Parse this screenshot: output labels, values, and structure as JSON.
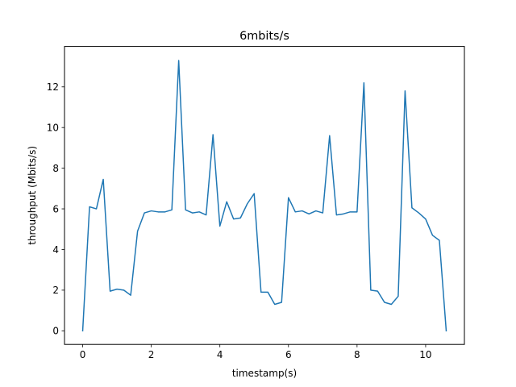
{
  "chart_data": {
    "type": "line",
    "title": "6mbits/s",
    "xlabel": "timestamp(s)",
    "ylabel": "throughput (Mbits/s)",
    "xlim": [
      -0.53,
      11.13
    ],
    "ylim": [
      -0.67,
      13.99
    ],
    "xticks": [
      0,
      2,
      4,
      6,
      8,
      10
    ],
    "yticks": [
      0,
      2,
      4,
      6,
      8,
      10,
      12
    ],
    "grid": false,
    "line_color": "#1f77b4",
    "x": [
      0.0,
      0.2,
      0.4,
      0.6,
      0.8,
      1.0,
      1.2,
      1.4,
      1.6,
      1.8,
      2.0,
      2.2,
      2.4,
      2.6,
      2.8,
      3.0,
      3.2,
      3.4,
      3.6,
      3.8,
      4.0,
      4.2,
      4.4,
      4.6,
      4.8,
      5.0,
      5.2,
      5.4,
      5.6,
      5.8,
      6.0,
      6.2,
      6.4,
      6.6,
      6.8,
      7.0,
      7.2,
      7.4,
      7.6,
      7.8,
      8.0,
      8.2,
      8.4,
      8.6,
      8.8,
      9.0,
      9.2,
      9.4,
      9.6,
      9.8,
      10.0,
      10.2,
      10.4,
      10.6
    ],
    "y": [
      0.0,
      6.1,
      6.0,
      7.45,
      1.95,
      2.05,
      2.0,
      1.75,
      4.9,
      5.8,
      5.9,
      5.85,
      5.85,
      5.95,
      13.3,
      5.95,
      5.8,
      5.85,
      5.7,
      9.65,
      5.15,
      6.35,
      5.5,
      5.55,
      6.25,
      6.75,
      1.9,
      1.9,
      1.3,
      1.4,
      6.55,
      5.85,
      5.9,
      5.75,
      5.9,
      5.8,
      9.6,
      5.7,
      5.75,
      5.85,
      5.85,
      12.2,
      2.0,
      1.95,
      1.4,
      1.3,
      1.7,
      11.8,
      6.05,
      5.8,
      5.5,
      4.7,
      4.45,
      0.0
    ]
  }
}
